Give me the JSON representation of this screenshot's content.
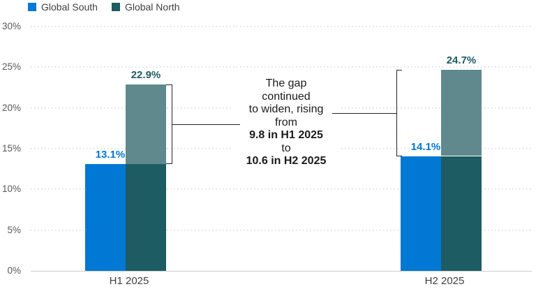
{
  "chart_data": {
    "type": "bar",
    "title": "",
    "xlabel": "",
    "ylabel": "",
    "categories": [
      "H1 2025",
      "H2 2025"
    ],
    "series": [
      {
        "name": "Global South",
        "color": "#0078D4",
        "values": [
          13.1,
          14.1
        ],
        "data_labels": [
          "13.1%",
          "14.1%"
        ]
      },
      {
        "name": "Global North",
        "color": "#1E5C63",
        "gap_highlight_color": "#5F898D",
        "values": [
          22.9,
          24.7
        ],
        "data_labels": [
          "22.9%",
          "24.7%"
        ]
      }
    ],
    "ylim": [
      0,
      30
    ],
    "yticks": [
      {
        "value": 30,
        "label": "30%"
      },
      {
        "value": 25,
        "label": "25%"
      },
      {
        "value": 20,
        "label": "20%"
      },
      {
        "value": 15,
        "label": "15%"
      },
      {
        "value": 10,
        "label": "10%"
      },
      {
        "value": 5,
        "label": "5%"
      },
      {
        "value": 0,
        "label": "0%"
      }
    ],
    "grid": "horizontal-dotted",
    "legend_position": "top-left",
    "gap_values": [
      9.8,
      10.6
    ],
    "annotation": {
      "lines": [
        {
          "text": "The gap",
          "bold": false
        },
        {
          "text": "continued",
          "bold": false
        },
        {
          "text": "to widen, rising",
          "bold": false
        },
        {
          "text": "from",
          "bold": false
        },
        {
          "text": "9.8 in H1 2025",
          "bold": true
        },
        {
          "text": "to",
          "bold": false
        },
        {
          "text": "10.6 in H2 2025",
          "bold": true
        }
      ]
    },
    "colors": {
      "gridline": "#DBDBDB",
      "axis_line": "#CDCDCD",
      "tick_label": "#595959",
      "category_label": "#3F3F3F",
      "bracket": "#262626"
    }
  }
}
